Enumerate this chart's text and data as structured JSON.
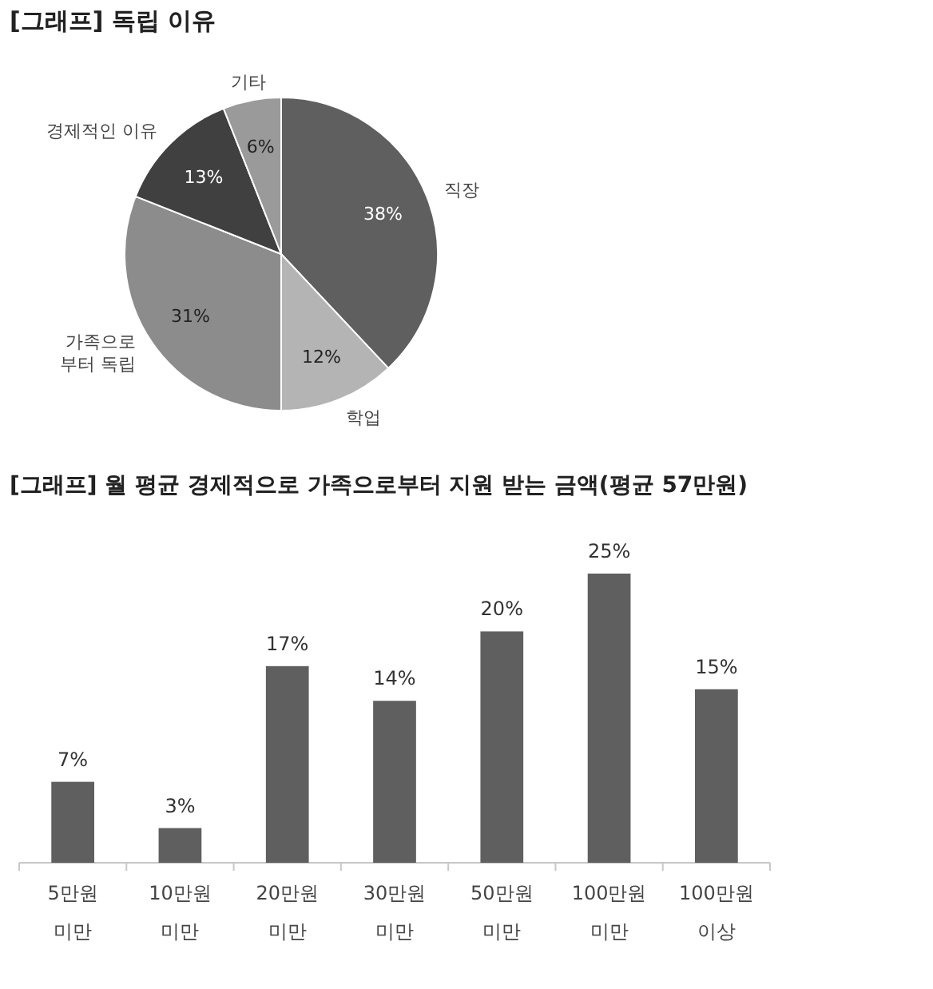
{
  "chart_data": [
    {
      "type": "pie",
      "title": "[그래프] 독립 이유",
      "categories": [
        "직장",
        "학업",
        "가족으로\n부터 독립",
        "경제적인 이유",
        "기타"
      ],
      "values": [
        38,
        12,
        31,
        13,
        6
      ],
      "colors": [
        "#5f5f5f",
        "#b4b4b4",
        "#8c8c8c",
        "#404040",
        "#9a9a9a"
      ],
      "value_labels": [
        "38%",
        "12%",
        "31%",
        "13%",
        "6%"
      ]
    },
    {
      "type": "bar",
      "title": "[그래프] 월 평균 경제적으로 가족으로부터 지원 받는 금액(평균 57만원)",
      "categories": [
        "5만원\n미만",
        "10만원\n미만",
        "20만원\n미만",
        "30만원\n미만",
        "50만원\n미만",
        "100만원\n미만",
        "100만원\n이상"
      ],
      "values": [
        7,
        3,
        17,
        14,
        20,
        25,
        15
      ],
      "color": "#5f5f5f",
      "value_labels": [
        "7%",
        "3%",
        "17%",
        "14%",
        "20%",
        "25%",
        "15%"
      ]
    }
  ]
}
